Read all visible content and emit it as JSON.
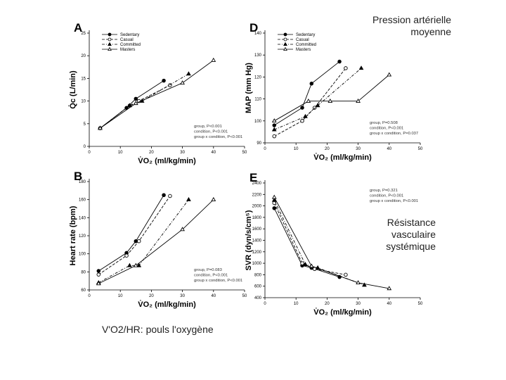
{
  "chart_data": [
    {
      "type": "line",
      "panel_label": "A",
      "xlabel": "V̇O₂ (ml/kg/min)",
      "ylabel": "Q̇c (L/min)",
      "xlim": [
        0,
        50
      ],
      "xticks": [
        0,
        10,
        20,
        30,
        40,
        50
      ],
      "ylim": [
        0,
        25
      ],
      "yticks": [
        0,
        5,
        10,
        15,
        20,
        25
      ],
      "legend": "top-left",
      "stats_position": "bottom-right",
      "stats": [
        "group, P<0.001",
        "condition, P<0.001",
        "group x condition, P<0.001"
      ],
      "series": [
        {
          "name": "Sedentary",
          "color": "#000000",
          "marker": "circle-filled",
          "dash": "solid",
          "x": [
            3.5,
            12,
            15,
            24
          ],
          "values": [
            4,
            8.5,
            10.5,
            14.5
          ]
        },
        {
          "name": "Casual",
          "color": "#000000",
          "marker": "circle-open",
          "dash": "dash",
          "x": [
            3.5,
            13,
            16,
            26
          ],
          "values": [
            4,
            9,
            10,
            13.5
          ]
        },
        {
          "name": "Committed",
          "color": "#000000",
          "marker": "triangle-filled",
          "dash": "dashdot",
          "x": [
            3.5,
            13,
            17,
            32
          ],
          "values": [
            4,
            9,
            10,
            16
          ]
        },
        {
          "name": "Masters",
          "color": "#000000",
          "marker": "triangle-open",
          "dash": "solid",
          "x": [
            3.5,
            15,
            30,
            40
          ],
          "values": [
            4,
            9.5,
            14,
            19
          ]
        }
      ]
    },
    {
      "type": "line",
      "panel_label": "D",
      "xlabel": "V̇O₂ (ml/kg/min)",
      "ylabel": "MAP (mm Hg)",
      "xlim": [
        0,
        50
      ],
      "xticks": [
        0,
        10,
        20,
        30,
        40,
        50
      ],
      "ylim": [
        90,
        140
      ],
      "yticks": [
        90,
        100,
        110,
        120,
        130,
        140
      ],
      "legend": "top-left",
      "stats_position": "bottom-right",
      "stats": [
        "group, P=0.508",
        "condition, P<0.001",
        "group x condition, P=0.037"
      ],
      "series": [
        {
          "name": "Sedentary",
          "color": "#000000",
          "marker": "circle-filled",
          "dash": "solid",
          "x": [
            3,
            12,
            15,
            24
          ],
          "values": [
            98,
            106,
            117,
            127
          ]
        },
        {
          "name": "Casual",
          "color": "#000000",
          "marker": "circle-open",
          "dash": "dash",
          "x": [
            3,
            12,
            16,
            26
          ],
          "values": [
            93,
            100,
            106,
            124
          ]
        },
        {
          "name": "Committed",
          "color": "#000000",
          "marker": "triangle-filled",
          "dash": "dashdot",
          "x": [
            3,
            13,
            17,
            31
          ],
          "values": [
            96,
            102,
            107,
            124
          ]
        },
        {
          "name": "Masters",
          "color": "#000000",
          "marker": "triangle-open",
          "dash": "solid",
          "x": [
            3,
            14,
            21,
            30,
            40
          ],
          "values": [
            100,
            109,
            109,
            109,
            121
          ]
        }
      ]
    },
    {
      "type": "line",
      "panel_label": "B",
      "xlabel": "V̇O₂ (ml/kg/min)",
      "ylabel": "Heart rate (bpm)",
      "xlim": [
        0,
        50
      ],
      "xticks": [
        0,
        10,
        20,
        30,
        40,
        50
      ],
      "ylim": [
        60,
        180
      ],
      "yticks": [
        60,
        80,
        100,
        120,
        140,
        160,
        180
      ],
      "stats_position": "bottom-right",
      "stats": [
        "group, P=0.083",
        "condition, P<0.001",
        "group x condition, P<0.001"
      ],
      "series": [
        {
          "name": "Sedentary",
          "color": "#000000",
          "marker": "circle-filled",
          "dash": "solid",
          "x": [
            3,
            12,
            15,
            24
          ],
          "values": [
            81,
            101,
            114,
            165
          ]
        },
        {
          "name": "Casual",
          "color": "#000000",
          "marker": "circle-open",
          "dash": "dash",
          "x": [
            3,
            12,
            16,
            26
          ],
          "values": [
            77,
            98,
            114,
            164
          ]
        },
        {
          "name": "Committed",
          "color": "#000000",
          "marker": "triangle-filled",
          "dash": "dashdot",
          "x": [
            3,
            13,
            16,
            32
          ],
          "values": [
            68,
            87,
            87,
            160
          ]
        },
        {
          "name": "Masters",
          "color": "#000000",
          "marker": "triangle-open",
          "dash": "solid",
          "x": [
            3,
            15,
            30,
            40
          ],
          "values": [
            67,
            87,
            127,
            160
          ]
        }
      ]
    },
    {
      "type": "line",
      "panel_label": "E",
      "xlabel": "V̇O₂ (ml/kg/min)",
      "ylabel": "SVR (dyn/s/cm⁵)",
      "xlim": [
        0,
        50
      ],
      "xticks": [
        0,
        10,
        20,
        30,
        40,
        50
      ],
      "ylim": [
        400,
        2400
      ],
      "yticks": [
        400,
        600,
        800,
        1000,
        1200,
        1400,
        1600,
        1800,
        2000,
        2200,
        2400
      ],
      "stats_position": "top-right",
      "stats": [
        "group, P=0.321",
        "condition, P<0.001",
        "group x condition, P<0.001"
      ],
      "series": [
        {
          "name": "Sedentary",
          "color": "#000000",
          "marker": "circle-filled",
          "dash": "solid",
          "x": [
            3,
            12,
            15,
            24
          ],
          "values": [
            1960,
            960,
            920,
            760
          ]
        },
        {
          "name": "Casual",
          "color": "#000000",
          "marker": "circle-open",
          "dash": "dash",
          "x": [
            3,
            12,
            16,
            26
          ],
          "values": [
            2050,
            1000,
            900,
            800
          ]
        },
        {
          "name": "Committed",
          "color": "#000000",
          "marker": "triangle-filled",
          "dash": "dashdot",
          "x": [
            3,
            13,
            17,
            32
          ],
          "values": [
            2100,
            980,
            920,
            620
          ]
        },
        {
          "name": "Masters",
          "color": "#000000",
          "marker": "triangle-open",
          "dash": "solid",
          "x": [
            3,
            15,
            30,
            40
          ],
          "values": [
            2150,
            950,
            660,
            560
          ]
        }
      ]
    }
  ],
  "annotations": [
    "Pression artérielle moyenne",
    "Résistance vasculaire systémique",
    "V'O2/HR: pouls l'oxygène"
  ]
}
